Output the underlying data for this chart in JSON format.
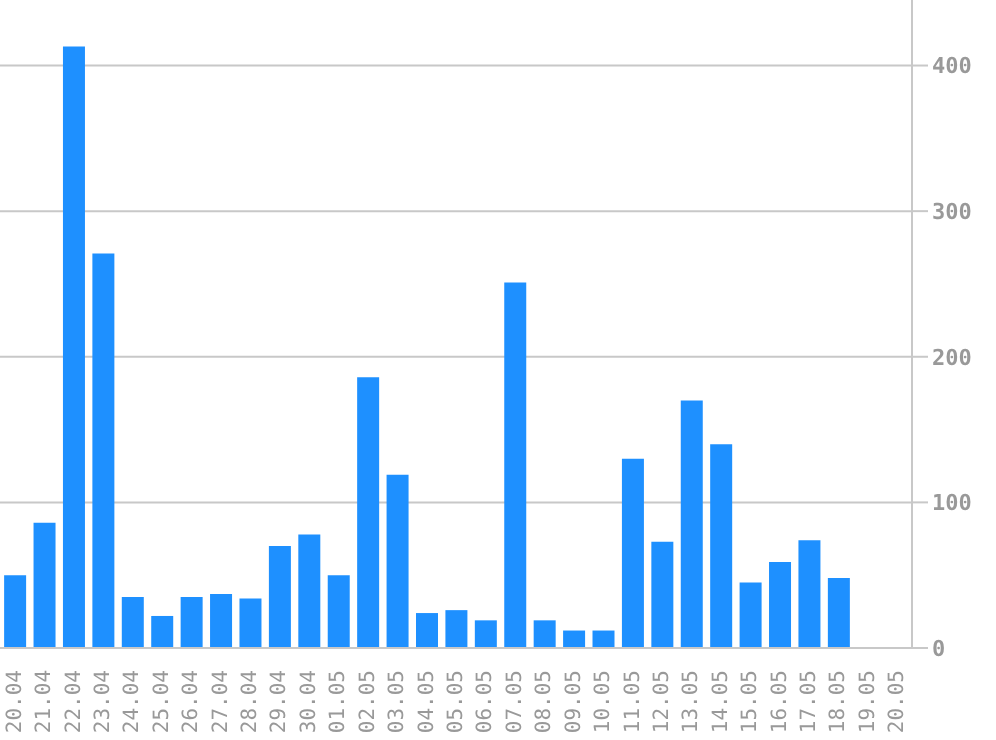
{
  "chart_data": {
    "type": "bar",
    "categories": [
      "20.04",
      "21.04",
      "22.04",
      "23.04",
      "24.04",
      "25.04",
      "26.04",
      "27.04",
      "28.04",
      "29.04",
      "30.04",
      "01.05",
      "02.05",
      "03.05",
      "04.05",
      "05.05",
      "06.05",
      "07.05",
      "08.05",
      "09.05",
      "10.05",
      "11.05",
      "12.05",
      "13.05",
      "14.05",
      "15.05",
      "16.05",
      "17.05",
      "18.05",
      "19.05",
      "20.05"
    ],
    "values": [
      50,
      86,
      413,
      271,
      35,
      22,
      35,
      37,
      34,
      70,
      78,
      50,
      186,
      119,
      24,
      26,
      19,
      251,
      19,
      12,
      12,
      130,
      73,
      170,
      140,
      45,
      59,
      74,
      48,
      0,
      0
    ],
    "color": "#1e90ff",
    "ylim": [
      0,
      445
    ],
    "yticks": [
      0,
      100,
      200,
      300,
      400
    ],
    "grid": "y"
  }
}
